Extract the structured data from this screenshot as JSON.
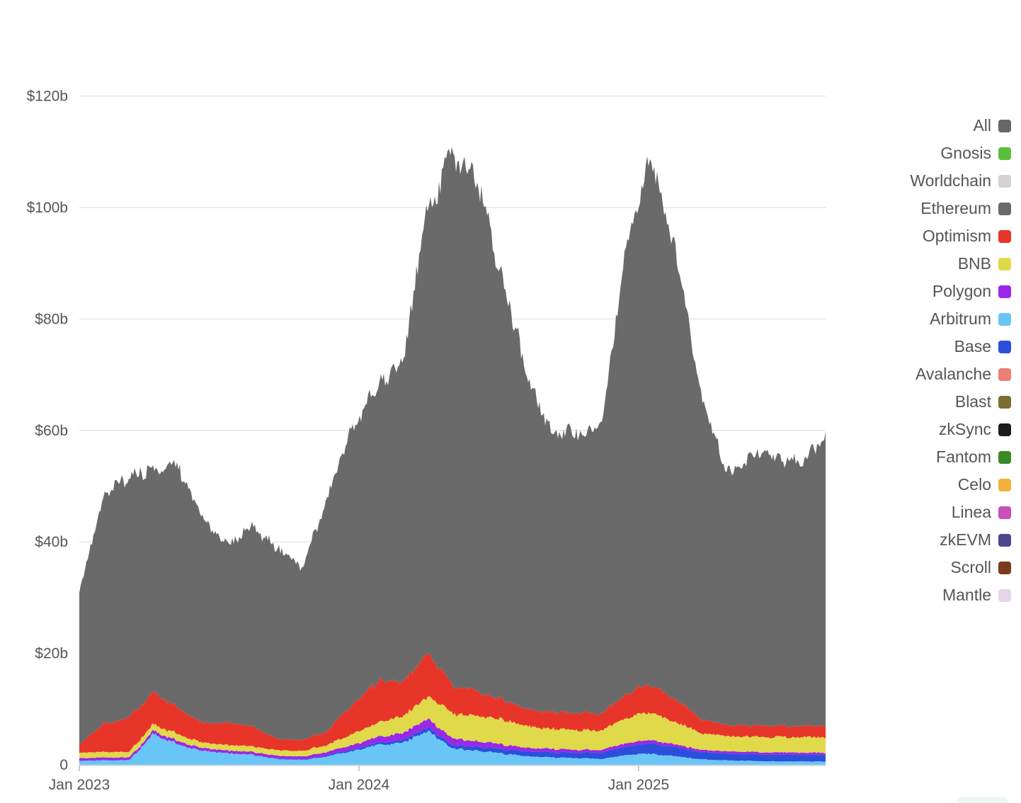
{
  "chart_data": {
    "type": "area",
    "stacked": true,
    "title": "",
    "xlabel": "",
    "ylabel": "",
    "ylim": [
      0,
      135
    ],
    "y_unit": "billion USD",
    "y_ticks": [
      {
        "value": 0,
        "label": "0"
      },
      {
        "value": 20,
        "label": "$20b"
      },
      {
        "value": 40,
        "label": "$40b"
      },
      {
        "value": 60,
        "label": "$60b"
      },
      {
        "value": 80,
        "label": "$80b"
      },
      {
        "value": 100,
        "label": "$100b"
      },
      {
        "value": 120,
        "label": "$120b"
      }
    ],
    "x_ticks": [
      "Jan 2023",
      "Jan 2024",
      "Jan 2025"
    ],
    "grid": "horizontal",
    "legend_position": "right",
    "x": [
      "2023-01",
      "2023-02",
      "2023-03",
      "2023-04",
      "2023-05",
      "2023-06",
      "2023-07",
      "2023-08",
      "2023-09",
      "2023-10",
      "2023-11",
      "2023-12",
      "2024-01",
      "2024-02",
      "2024-03",
      "2024-04",
      "2024-05",
      "2024-06",
      "2024-07",
      "2024-08",
      "2024-09",
      "2024-10",
      "2024-11",
      "2024-12",
      "2025-01",
      "2025-02",
      "2025-03",
      "2025-04",
      "2025-05",
      "2025-06",
      "2025-07"
    ],
    "series": [
      {
        "name": "Arbitrum",
        "color": "#6ac5f7",
        "values": [
          0.7,
          0.8,
          0.8,
          5.5,
          3.5,
          2.5,
          2.0,
          1.8,
          1.0,
          0.9,
          1.5,
          2.5,
          3.5,
          4.0,
          6.0,
          3.0,
          2.5,
          2.0,
          1.5,
          1.3,
          1.2,
          1.0,
          1.8,
          2.0,
          1.5,
          1.0,
          0.8,
          0.7,
          0.6,
          0.6,
          0.6
        ]
      },
      {
        "name": "Base",
        "color": "#2b4fdb",
        "values": [
          0.0,
          0.0,
          0.0,
          0.0,
          0.0,
          0.0,
          0.0,
          0.0,
          0.1,
          0.1,
          0.2,
          0.3,
          0.4,
          0.5,
          0.7,
          0.6,
          0.7,
          0.8,
          0.9,
          0.9,
          1.0,
          1.1,
          1.6,
          1.8,
          1.6,
          1.3,
          1.2,
          1.2,
          1.2,
          1.2,
          1.2
        ]
      },
      {
        "name": "Polygon",
        "color": "#9b27e8",
        "values": [
          0.5,
          0.5,
          0.5,
          0.6,
          0.6,
          0.5,
          0.5,
          0.5,
          0.5,
          0.5,
          0.6,
          0.8,
          1.0,
          1.2,
          1.5,
          1.2,
          1.0,
          0.8,
          0.6,
          0.6,
          0.5,
          0.5,
          0.6,
          0.6,
          0.5,
          0.4,
          0.4,
          0.4,
          0.4,
          0.4,
          0.4
        ]
      },
      {
        "name": "BNB",
        "color": "#e0d94a",
        "values": [
          1.0,
          1.0,
          1.0,
          1.2,
          1.2,
          1.0,
          1.0,
          1.0,
          1.0,
          1.0,
          1.3,
          2.0,
          2.5,
          3.0,
          4.0,
          4.5,
          4.5,
          4.3,
          4.0,
          3.5,
          3.5,
          3.5,
          4.5,
          5.0,
          4.0,
          3.0,
          2.8,
          2.8,
          2.8,
          2.8,
          2.8
        ]
      },
      {
        "name": "Optimism",
        "color": "#e8352a",
        "values": [
          1.5,
          5.0,
          6.0,
          6.0,
          4.5,
          3.5,
          4.0,
          3.5,
          2.0,
          2.0,
          2.5,
          5.5,
          7.5,
          6.0,
          8.0,
          5.0,
          4.5,
          3.5,
          3.0,
          3.0,
          3.0,
          3.0,
          4.5,
          5.0,
          4.0,
          2.5,
          2.0,
          2.0,
          2.0,
          2.0,
          2.0
        ]
      },
      {
        "name": "Ethereum",
        "color": "#6a6a6a",
        "values": [
          28,
          41,
          43,
          40,
          43,
          36,
          32,
          36,
          34,
          31,
          42,
          50,
          52,
          58,
          80,
          95,
          92,
          76,
          60,
          50,
          50,
          52,
          80,
          95,
          80,
          58,
          45,
          48,
          48,
          47,
          53
        ]
      }
    ],
    "legend": [
      {
        "name": "All",
        "color": "#66666b"
      },
      {
        "name": "Gnosis",
        "color": "#5cbf3b"
      },
      {
        "name": "Worldchain",
        "color": "#d7d2d2"
      },
      {
        "name": "Ethereum",
        "color": "#6a6a6a"
      },
      {
        "name": "Optimism",
        "color": "#e8352a"
      },
      {
        "name": "BNB",
        "color": "#e0d94a"
      },
      {
        "name": "Polygon",
        "color": "#9b27e8"
      },
      {
        "name": "Arbitrum",
        "color": "#6ac5f7"
      },
      {
        "name": "Base",
        "color": "#2b4fdb"
      },
      {
        "name": "Avalanche",
        "color": "#ee7e74"
      },
      {
        "name": "Blast",
        "color": "#7b6e32"
      },
      {
        "name": "zkSync",
        "color": "#1c1c1c"
      },
      {
        "name": "Fantom",
        "color": "#3a8a26"
      },
      {
        "name": "Celo",
        "color": "#f4b23a"
      },
      {
        "name": "Linea",
        "color": "#c94fbc"
      },
      {
        "name": "zkEVM",
        "color": "#4f4690"
      },
      {
        "name": "Scroll",
        "color": "#7a3b1a"
      },
      {
        "name": "Mantle",
        "color": "#e6d5ea"
      }
    ]
  }
}
